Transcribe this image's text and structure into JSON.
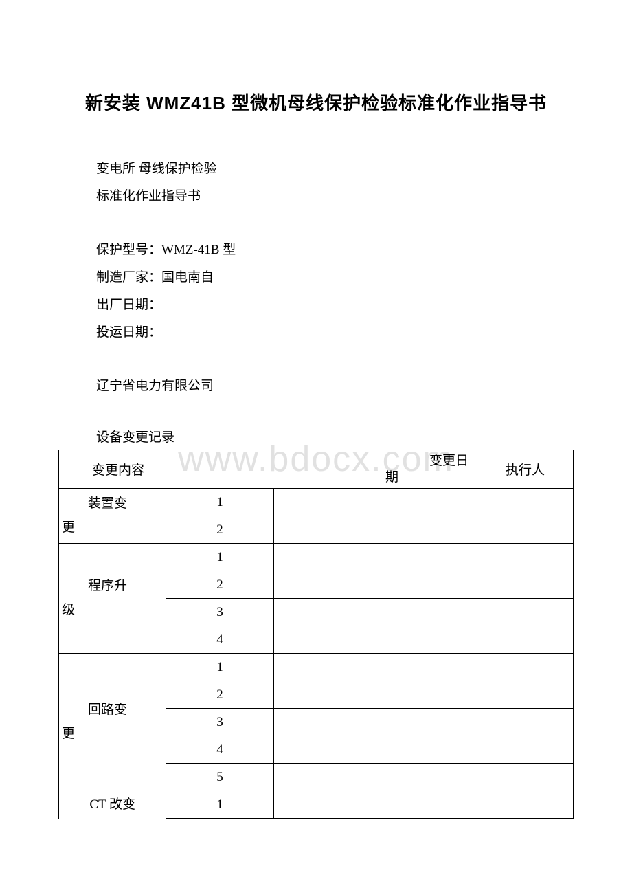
{
  "title": "新安装 WMZ41B 型微机母线保护检验标准化作业指导书",
  "info": {
    "line1": "变电所 母线保护检验",
    "line2": "标准化作业指导书",
    "model_label": "保护型号：",
    "model_value": "WMZ-41B 型",
    "mfr_label": "制造厂家：",
    "mfr_value": "国电南自",
    "factory_date_label": "出厂日期：",
    "factory_date_value": "",
    "run_date_label": "投运日期：",
    "run_date_value": "",
    "company": "辽宁省电力有限公司"
  },
  "section_label": "设备变更记录",
  "watermark": "www.bdocx.com",
  "table": {
    "headers": {
      "change_content": "变更内容",
      "change_date_l1": "变更日",
      "change_date_l2": "期",
      "executor": "执行人"
    },
    "categories": {
      "device": {
        "l1": "装置变",
        "l2": "更"
      },
      "program": {
        "l1": "程序升",
        "l2": "级"
      },
      "circuit": {
        "l1": "回路变",
        "l2": "更"
      },
      "ct": {
        "label": "CT 改变"
      }
    },
    "nums": {
      "n1": "1",
      "n2": "2",
      "n3": "3",
      "n4": "4",
      "n5": "5"
    }
  },
  "colors": {
    "text": "#000000",
    "background": "#ffffff",
    "border": "#000000",
    "watermark": "rgba(200,200,200,0.55)"
  }
}
